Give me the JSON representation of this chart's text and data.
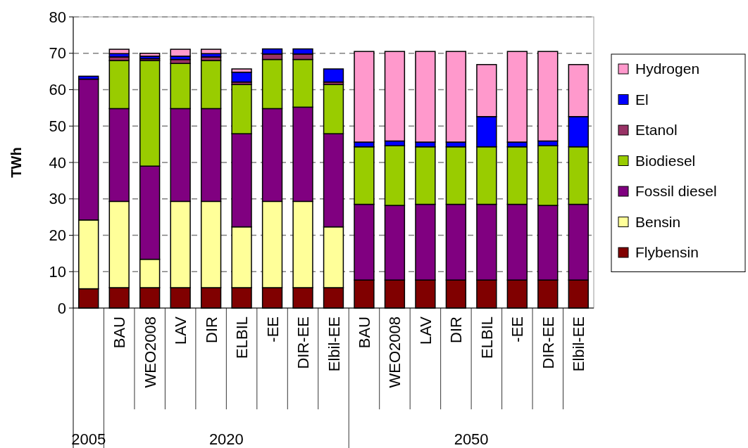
{
  "chart_data": {
    "type": "bar",
    "stacked": true,
    "ylabel": "TWh",
    "ylim": [
      0,
      80
    ],
    "yticks": [
      0,
      10,
      20,
      30,
      40,
      50,
      60,
      70,
      80
    ],
    "grid": "y",
    "legend": "right",
    "categories": [
      null,
      "BAU",
      "WEO2008",
      "LAV",
      "DIR",
      "ELBIL",
      "-EE",
      "DIR-EE",
      "Elbil-EE",
      "BAU",
      "WEO2008",
      "LAV",
      "DIR",
      "ELBIL",
      "-EE",
      "DIR-EE",
      "Elbil-EE"
    ],
    "annotations": [
      "2005",
      "2020",
      "2050"
    ],
    "series": [
      {
        "name": "Flybensin",
        "color": "#800000",
        "values": [
          5.3,
          5.6,
          5.6,
          5.6,
          5.6,
          5.6,
          5.6,
          5.6,
          5.6,
          7.7,
          7.7,
          7.7,
          7.7,
          7.7,
          7.7,
          7.7,
          7.7
        ]
      },
      {
        "name": "Bensin",
        "color": "#ffff99",
        "values": [
          18.9,
          23.7,
          7.8,
          23.7,
          23.7,
          16.7,
          23.7,
          23.7,
          16.7,
          0,
          0,
          0,
          0,
          0,
          0,
          0,
          0
        ]
      },
      {
        "name": "Fossil diesel",
        "color": "#800080",
        "values": [
          38.7,
          25.5,
          25.6,
          25.5,
          25.5,
          25.6,
          25.5,
          25.9,
          25.6,
          20.8,
          20.5,
          20.8,
          20.8,
          20.8,
          20.8,
          20.5,
          20.8
        ]
      },
      {
        "name": "Biodiesel",
        "color": "#99cc00",
        "values": [
          0,
          13.2,
          29.0,
          12.4,
          13.2,
          13.5,
          13.5,
          13.1,
          13.5,
          15.8,
          16.4,
          15.8,
          15.8,
          15.8,
          15.8,
          16.4,
          15.8
        ]
      },
      {
        "name": "Etanol",
        "color": "#993366",
        "values": [
          0,
          1.0,
          0.5,
          1.1,
          1.0,
          0.7,
          1.5,
          1.5,
          0.7,
          0,
          0,
          0,
          0,
          0,
          0,
          0,
          0
        ]
      },
      {
        "name": "El",
        "color": "#0000ff",
        "values": [
          0.8,
          0.9,
          0.7,
          0.9,
          0.9,
          2.7,
          1.4,
          1.4,
          3.6,
          1.3,
          1.3,
          1.3,
          1.3,
          8.3,
          1.3,
          1.3,
          8.3
        ]
      },
      {
        "name": "Hydrogen",
        "color": "#ff99cc",
        "values": [
          0,
          1.2,
          0.8,
          1.9,
          1.2,
          0.9,
          0,
          0,
          0,
          24.9,
          24.6,
          24.9,
          24.9,
          14.3,
          24.9,
          24.6,
          14.3
        ]
      }
    ]
  }
}
